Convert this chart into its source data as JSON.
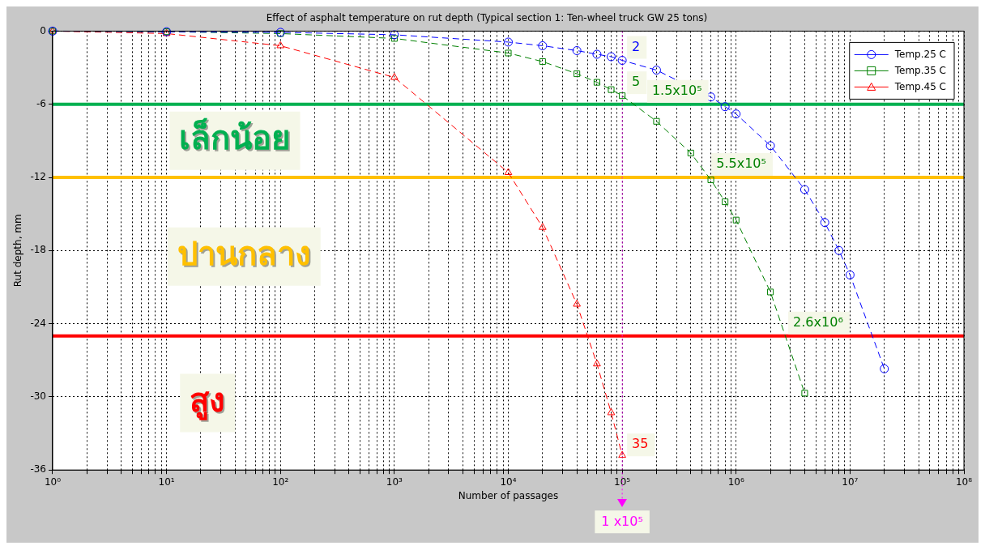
{
  "chart_data": {
    "type": "line",
    "title": "Effect of asphalt temperature on rut depth (Typical section 1: Ten-wheel truck GW 25 tons)",
    "xlabel": "Number of passages",
    "ylabel": "Rut depth, mm",
    "log": "x",
    "grid": true,
    "legend": "top right",
    "line_style": "dashed",
    "xlim": [
      1,
      100000000
    ],
    "ylim": [
      -36,
      0
    ],
    "xticks": [
      {
        "value": 1,
        "label": "10⁰"
      },
      {
        "value": 2,
        "label": null
      },
      {
        "value": 3,
        "label": null
      },
      {
        "value": 4,
        "label": null
      },
      {
        "value": 5,
        "label": null
      },
      {
        "value": 6,
        "label": null
      },
      {
        "value": 7,
        "label": null
      },
      {
        "value": 8,
        "label": null
      },
      {
        "value": 9,
        "label": null
      },
      {
        "value": 10,
        "label": "10¹"
      },
      {
        "value": 20,
        "label": null
      },
      {
        "value": 30,
        "label": null
      },
      {
        "value": 40,
        "label": null
      },
      {
        "value": 50,
        "label": null
      },
      {
        "value": 60,
        "label": null
      },
      {
        "value": 70,
        "label": null
      },
      {
        "value": 80,
        "label": null
      },
      {
        "value": 90,
        "label": null
      },
      {
        "value": 100,
        "label": "10²"
      },
      {
        "value": 200,
        "label": null
      },
      {
        "value": 300,
        "label": null
      },
      {
        "value": 400,
        "label": null
      },
      {
        "value": 500,
        "label": null
      },
      {
        "value": 600,
        "label": null
      },
      {
        "value": 700,
        "label": null
      },
      {
        "value": 800,
        "label": null
      },
      {
        "value": 900,
        "label": null
      },
      {
        "value": 1000,
        "label": "10³"
      },
      {
        "value": 2000,
        "label": null
      },
      {
        "value": 3000,
        "label": null
      },
      {
        "value": 4000,
        "label": null
      },
      {
        "value": 5000,
        "label": null
      },
      {
        "value": 6000,
        "label": null
      },
      {
        "value": 7000,
        "label": null
      },
      {
        "value": 8000,
        "label": null
      },
      {
        "value": 9000,
        "label": null
      },
      {
        "value": 10000,
        "label": "10⁴"
      },
      {
        "value": 20000,
        "label": null
      },
      {
        "value": 30000,
        "label": null
      },
      {
        "value": 40000,
        "label": null
      },
      {
        "value": 50000,
        "label": null
      },
      {
        "value": 60000,
        "label": null
      },
      {
        "value": 70000,
        "label": null
      },
      {
        "value": 80000,
        "label": null
      },
      {
        "value": 90000,
        "label": null
      },
      {
        "value": 100000,
        "label": "10⁵"
      },
      {
        "value": 200000,
        "label": null
      },
      {
        "value": 300000,
        "label": null
      },
      {
        "value": 400000,
        "label": null
      },
      {
        "value": 500000,
        "label": null
      },
      {
        "value": 600000,
        "label": null
      },
      {
        "value": 700000,
        "label": null
      },
      {
        "value": 800000,
        "label": null
      },
      {
        "value": 900000,
        "label": null
      },
      {
        "value": 1000000,
        "label": "10⁶"
      },
      {
        "value": 2000000,
        "label": null
      },
      {
        "value": 3000000,
        "label": null
      },
      {
        "value": 4000000,
        "label": null
      },
      {
        "value": 5000000,
        "label": null
      },
      {
        "value": 6000000,
        "label": null
      },
      {
        "value": 7000000,
        "label": null
      },
      {
        "value": 8000000,
        "label": null
      },
      {
        "value": 9000000,
        "label": null
      },
      {
        "value": 10000000,
        "label": "10⁷"
      },
      {
        "value": 20000000,
        "label": null
      },
      {
        "value": 30000000,
        "label": null
      },
      {
        "value": 40000000,
        "label": null
      },
      {
        "value": 50000000,
        "label": null
      },
      {
        "value": 60000000,
        "label": null
      },
      {
        "value": 70000000,
        "label": null
      },
      {
        "value": 80000000,
        "label": null
      },
      {
        "value": 90000000,
        "label": null
      },
      {
        "value": 100000000,
        "label": "10⁸"
      }
    ],
    "yticks": [
      -36,
      -30,
      -24,
      -18,
      -12,
      -6,
      0
    ],
    "series": [
      {
        "name": "Temp.25 C",
        "color": "#0000ff",
        "marker": "circle",
        "x": [
          1,
          10,
          100,
          1000,
          10000,
          20000,
          40000,
          60000,
          80000,
          100000,
          200000,
          600000,
          800000,
          1000000,
          2000000,
          4000000,
          6000000,
          8000000,
          10000000,
          20000000
        ],
        "values": [
          0,
          -0.05,
          -0.1,
          -0.3,
          -0.9,
          -1.2,
          -1.6,
          -1.9,
          -2.1,
          -2.4,
          -3.2,
          -5.4,
          -6.2,
          -6.8,
          -9.4,
          -13,
          -15.7,
          -18,
          -20,
          -27.7
        ]
      },
      {
        "name": "Temp.35 C",
        "color": "#008000",
        "marker": "square",
        "x": [
          1,
          10,
          100,
          1000,
          10000,
          20000,
          40000,
          60000,
          80000,
          100000,
          200000,
          400000,
          600000,
          800000,
          1000000,
          2000000,
          4000000
        ],
        "values": [
          0,
          -0.05,
          -0.2,
          -0.6,
          -1.8,
          -2.5,
          -3.5,
          -4.2,
          -4.8,
          -5.3,
          -7.4,
          -10,
          -12.2,
          -14,
          -15.5,
          -21.4,
          -29.7
        ]
      },
      {
        "name": "Temp.45 C",
        "color": "#ff0000",
        "marker": "triangle",
        "x": [
          1,
          10,
          100,
          1000,
          10000,
          20000,
          40000,
          60000,
          80000,
          100000
        ],
        "values": [
          0,
          -0.2,
          -1.2,
          -3.8,
          -11.6,
          -16.1,
          -22.4,
          -27.3,
          -31.3,
          -34.8
        ]
      }
    ],
    "ref_lines": [
      {
        "axis": "y",
        "value": -6,
        "color": "#00b050"
      },
      {
        "axis": "y",
        "value": -12,
        "color": "#ffc000"
      },
      {
        "axis": "y",
        "value": -25,
        "color": "#ff0000"
      },
      {
        "axis": "x",
        "value": 100000,
        "label": "1 x10⁵",
        "color": "#ff00ff",
        "line_style": "dotted"
      }
    ],
    "annotations": [
      "เล็กน้อย",
      "ปานกลาง",
      "สูง",
      {
        "text": "2",
        "x": 100000,
        "y": -2.4
      },
      {
        "text": "5",
        "x": 100000,
        "y": -5.3
      },
      {
        "text": "1.5x10⁵",
        "x": 150000,
        "y": -6
      },
      {
        "text": "5.5x10⁵",
        "x": 550000,
        "y": -12
      },
      {
        "text": "2.6x10⁶",
        "x": 2600000,
        "y": -25
      },
      {
        "text": "35",
        "x": 100000,
        "y": -35
      }
    ]
  }
}
